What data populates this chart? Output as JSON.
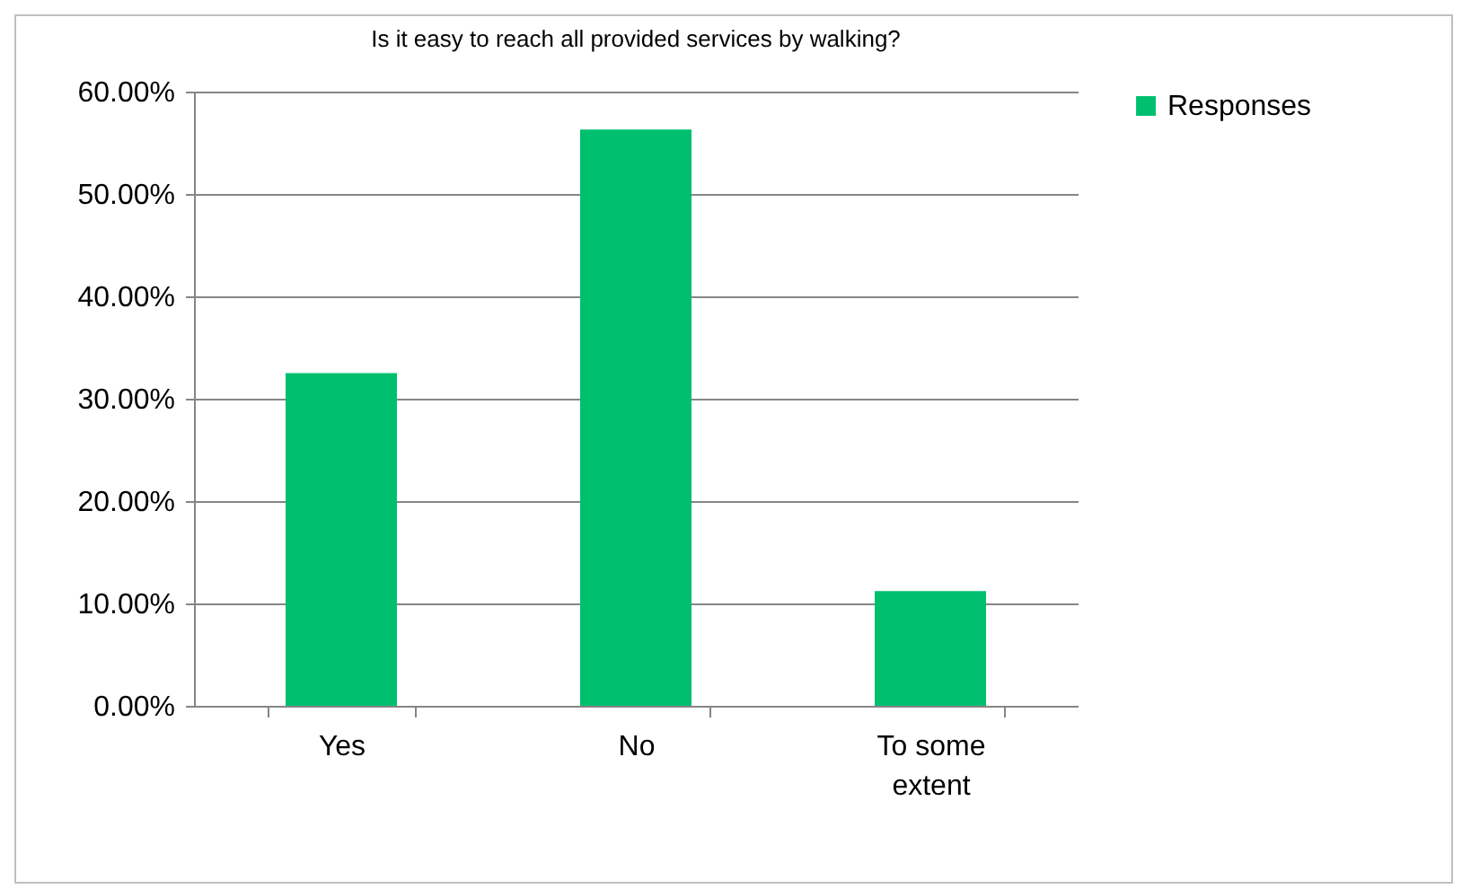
{
  "chart_data": {
    "type": "bar",
    "title": "Is it easy to reach all provided services by walking?",
    "categories": [
      "Yes",
      "No",
      "To some extent"
    ],
    "series": [
      {
        "name": "Responses",
        "color": "#00bf6f",
        "values": [
          32.5,
          56.3,
          11.2
        ]
      }
    ],
    "ylim": [
      0,
      60
    ],
    "yticks": [
      {
        "value": 0,
        "label": "0.00%"
      },
      {
        "value": 10,
        "label": "10.00%"
      },
      {
        "value": 20,
        "label": "20.00%"
      },
      {
        "value": 30,
        "label": "30.00%"
      },
      {
        "value": 40,
        "label": "40.00%"
      },
      {
        "value": 50,
        "label": "50.00%"
      },
      {
        "value": 60,
        "label": "60.00%"
      }
    ],
    "grid": "y",
    "legend": "right"
  }
}
